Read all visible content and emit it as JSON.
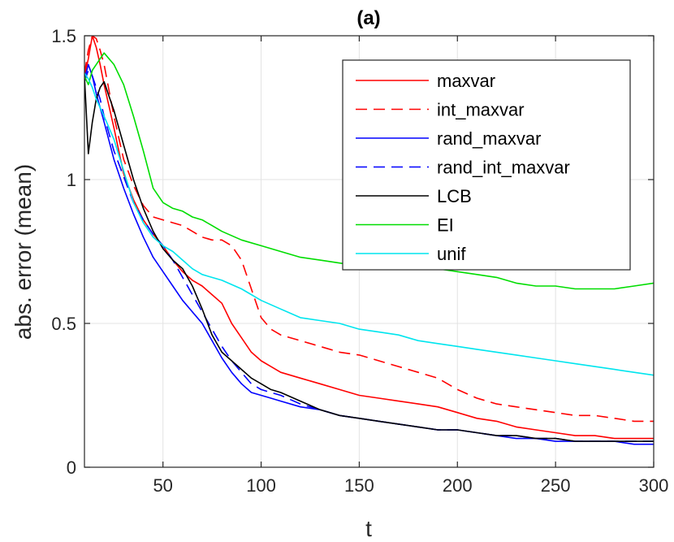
{
  "chart_data": {
    "type": "line",
    "title": "(a)",
    "xlabel": "t",
    "ylabel": "abs. error (mean)",
    "xlim": [
      10,
      300
    ],
    "ylim": [
      0,
      1.5
    ],
    "xticks": [
      50,
      100,
      150,
      200,
      250,
      300
    ],
    "yticks": [
      0,
      0.5,
      1,
      1.5
    ],
    "ytick_labels": [
      "0",
      "0.5",
      "1",
      "1.5"
    ],
    "grid": true,
    "legend_position": "top-right",
    "series": [
      {
        "name": "maxvar",
        "color": "#ff0000",
        "dash": "solid",
        "x": [
          10,
          12,
          14,
          16,
          18,
          20,
          25,
          30,
          35,
          40,
          45,
          50,
          55,
          60,
          65,
          70,
          75,
          80,
          85,
          90,
          95,
          100,
          105,
          110,
          120,
          130,
          140,
          150,
          160,
          170,
          180,
          190,
          200,
          210,
          220,
          230,
          240,
          250,
          260,
          270,
          280,
          290,
          300
        ],
        "y": [
          1.36,
          1.42,
          1.5,
          1.46,
          1.4,
          1.33,
          1.18,
          1.02,
          0.93,
          0.86,
          0.81,
          0.77,
          0.72,
          0.68,
          0.65,
          0.63,
          0.6,
          0.57,
          0.5,
          0.45,
          0.4,
          0.37,
          0.35,
          0.33,
          0.31,
          0.29,
          0.27,
          0.25,
          0.24,
          0.23,
          0.22,
          0.21,
          0.19,
          0.17,
          0.16,
          0.14,
          0.13,
          0.12,
          0.11,
          0.11,
          0.1,
          0.1,
          0.1
        ]
      },
      {
        "name": "int_maxvar",
        "color": "#ff0000",
        "dash": "dashed",
        "x": [
          10,
          12,
          14,
          16,
          18,
          20,
          25,
          30,
          35,
          40,
          45,
          50,
          55,
          60,
          65,
          70,
          75,
          80,
          85,
          90,
          95,
          100,
          105,
          110,
          120,
          130,
          140,
          150,
          160,
          170,
          180,
          190,
          200,
          210,
          220,
          230,
          240,
          250,
          260,
          270,
          280,
          290,
          300
        ],
        "y": [
          1.37,
          1.45,
          1.5,
          1.49,
          1.45,
          1.4,
          1.22,
          1.07,
          0.98,
          0.91,
          0.87,
          0.86,
          0.85,
          0.84,
          0.82,
          0.8,
          0.79,
          0.79,
          0.77,
          0.72,
          0.62,
          0.52,
          0.48,
          0.46,
          0.44,
          0.42,
          0.4,
          0.39,
          0.37,
          0.35,
          0.33,
          0.31,
          0.27,
          0.24,
          0.22,
          0.21,
          0.2,
          0.19,
          0.18,
          0.18,
          0.17,
          0.16,
          0.16
        ]
      },
      {
        "name": "rand_maxvar",
        "color": "#0000ff",
        "dash": "solid",
        "x": [
          10,
          12,
          14,
          16,
          18,
          20,
          25,
          30,
          35,
          40,
          45,
          50,
          55,
          60,
          65,
          70,
          75,
          80,
          85,
          90,
          95,
          100,
          105,
          110,
          120,
          130,
          140,
          150,
          160,
          170,
          180,
          190,
          200,
          210,
          220,
          230,
          240,
          250,
          260,
          270,
          280,
          290,
          300
        ],
        "y": [
          1.35,
          1.4,
          1.36,
          1.3,
          1.25,
          1.2,
          1.07,
          0.97,
          0.88,
          0.8,
          0.73,
          0.68,
          0.63,
          0.58,
          0.54,
          0.5,
          0.44,
          0.38,
          0.33,
          0.29,
          0.26,
          0.25,
          0.24,
          0.23,
          0.21,
          0.2,
          0.18,
          0.17,
          0.16,
          0.15,
          0.14,
          0.13,
          0.13,
          0.12,
          0.11,
          0.1,
          0.1,
          0.09,
          0.09,
          0.09,
          0.09,
          0.08,
          0.08
        ]
      },
      {
        "name": "rand_int_maxvar",
        "color": "#0000ff",
        "dash": "dashed",
        "x": [
          10,
          12,
          14,
          16,
          18,
          20,
          25,
          30,
          35,
          40,
          45,
          50,
          55,
          60,
          65,
          70,
          75,
          80,
          85,
          90,
          95,
          100,
          105,
          110,
          120,
          130,
          140,
          150,
          160,
          170,
          180,
          190,
          200,
          210,
          220,
          230,
          240,
          250,
          260,
          270,
          280,
          290,
          300
        ],
        "y": [
          1.34,
          1.38,
          1.36,
          1.32,
          1.28,
          1.22,
          1.1,
          1.01,
          0.92,
          0.86,
          0.81,
          0.77,
          0.72,
          0.66,
          0.6,
          0.54,
          0.48,
          0.42,
          0.37,
          0.33,
          0.29,
          0.27,
          0.26,
          0.25,
          0.22,
          0.2,
          0.18,
          0.17,
          0.16,
          0.15,
          0.14,
          0.13,
          0.13,
          0.12,
          0.11,
          0.11,
          0.1,
          0.1,
          0.09,
          0.09,
          0.09,
          0.09,
          0.09
        ]
      },
      {
        "name": "LCB",
        "color": "#000000",
        "dash": "solid",
        "x": [
          10,
          12,
          14,
          16,
          18,
          20,
          22,
          25,
          30,
          35,
          40,
          45,
          50,
          55,
          60,
          65,
          70,
          75,
          80,
          85,
          90,
          95,
          100,
          105,
          110,
          120,
          130,
          140,
          150,
          160,
          170,
          180,
          190,
          200,
          210,
          220,
          230,
          240,
          250,
          260,
          270,
          280,
          290,
          300
        ],
        "y": [
          1.36,
          1.09,
          1.2,
          1.28,
          1.32,
          1.34,
          1.3,
          1.24,
          1.12,
          1.0,
          0.9,
          0.82,
          0.76,
          0.72,
          0.69,
          0.63,
          0.55,
          0.46,
          0.4,
          0.37,
          0.34,
          0.31,
          0.29,
          0.27,
          0.26,
          0.23,
          0.2,
          0.18,
          0.17,
          0.16,
          0.15,
          0.14,
          0.13,
          0.13,
          0.12,
          0.11,
          0.11,
          0.1,
          0.1,
          0.09,
          0.09,
          0.09,
          0.09,
          0.09
        ]
      },
      {
        "name": "EI",
        "color": "#00dd00",
        "dash": "solid",
        "x": [
          10,
          12,
          14,
          16,
          18,
          20,
          25,
          30,
          35,
          40,
          45,
          50,
          55,
          60,
          65,
          70,
          75,
          80,
          90,
          100,
          110,
          120,
          130,
          140,
          150,
          160,
          170,
          180,
          190,
          200,
          210,
          220,
          230,
          240,
          250,
          260,
          270,
          280,
          290,
          300
        ],
        "y": [
          1.36,
          1.33,
          1.38,
          1.4,
          1.42,
          1.44,
          1.4,
          1.33,
          1.22,
          1.1,
          0.97,
          0.92,
          0.9,
          0.89,
          0.87,
          0.86,
          0.84,
          0.82,
          0.79,
          0.77,
          0.75,
          0.73,
          0.72,
          0.71,
          0.7,
          0.7,
          0.69,
          0.69,
          0.69,
          0.68,
          0.67,
          0.66,
          0.64,
          0.63,
          0.63,
          0.62,
          0.62,
          0.62,
          0.63,
          0.64
        ]
      },
      {
        "name": "unif",
        "color": "#00e5ee",
        "dash": "solid",
        "x": [
          10,
          12,
          14,
          16,
          18,
          20,
          25,
          30,
          35,
          40,
          45,
          50,
          55,
          60,
          65,
          70,
          75,
          80,
          90,
          100,
          110,
          120,
          130,
          140,
          150,
          160,
          170,
          180,
          190,
          200,
          210,
          220,
          230,
          240,
          250,
          260,
          270,
          280,
          290,
          300
        ],
        "y": [
          1.37,
          1.35,
          1.32,
          1.28,
          1.25,
          1.22,
          1.14,
          1.03,
          0.92,
          0.85,
          0.8,
          0.77,
          0.75,
          0.72,
          0.69,
          0.67,
          0.66,
          0.65,
          0.62,
          0.58,
          0.55,
          0.52,
          0.51,
          0.5,
          0.48,
          0.47,
          0.46,
          0.44,
          0.43,
          0.42,
          0.41,
          0.4,
          0.39,
          0.38,
          0.37,
          0.36,
          0.35,
          0.34,
          0.33,
          0.32
        ]
      }
    ]
  }
}
